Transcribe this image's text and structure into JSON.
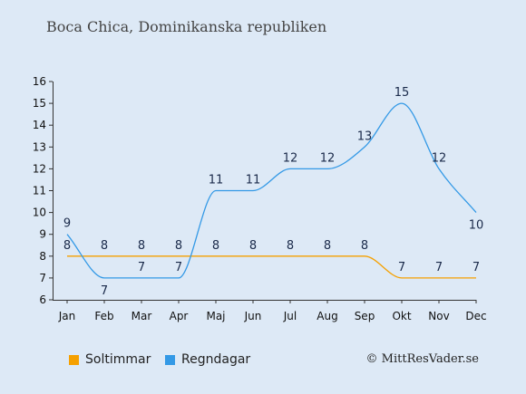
{
  "title": "Boca Chica, Dominikanska republiken",
  "credit": "© MittResVader.se",
  "colors": {
    "sun": "#f5a000",
    "rain": "#3399e6",
    "background": "#dde9f6",
    "axis": "#333333"
  },
  "chart_data": {
    "type": "line",
    "categories": [
      "Jan",
      "Feb",
      "Mar",
      "Apr",
      "Maj",
      "Jun",
      "Jul",
      "Aug",
      "Sep",
      "Okt",
      "Nov",
      "Dec"
    ],
    "ylim": [
      6,
      16
    ],
    "yticks": [
      6,
      7,
      8,
      9,
      10,
      11,
      12,
      13,
      14,
      15,
      16
    ],
    "grid": false,
    "legend_position": "bottom",
    "series": [
      {
        "name": "Soltimmar",
        "values": [
          8,
          8,
          8,
          8,
          8,
          8,
          8,
          8,
          8,
          7,
          7,
          7
        ]
      },
      {
        "name": "Regndagar",
        "values": [
          9,
          7,
          7,
          7,
          11,
          11,
          12,
          12,
          13,
          15,
          12,
          10
        ]
      }
    ]
  }
}
